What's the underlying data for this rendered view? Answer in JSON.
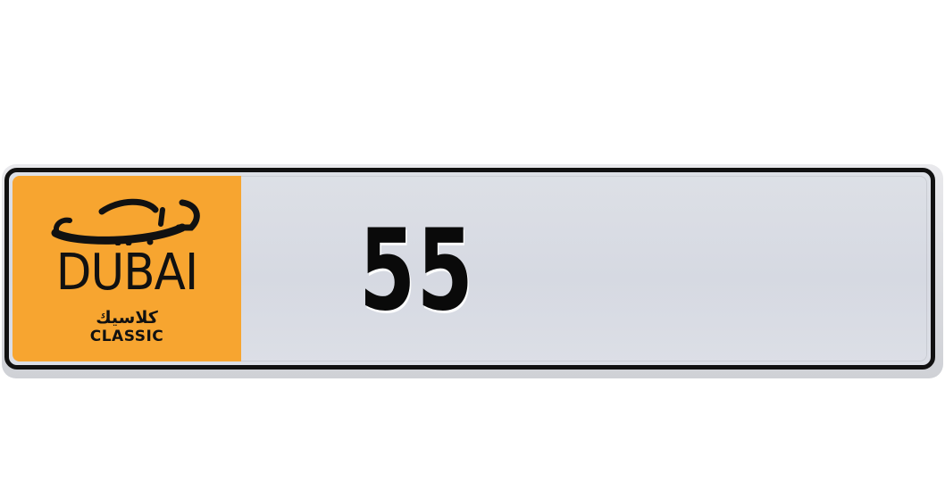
{
  "plate": {
    "emirate_arabic": "دبي",
    "emirate": "DUBAI",
    "category_arabic": "كلاسيك",
    "category": "CLASSIC",
    "number": "55"
  },
  "colors": {
    "emirate_panel": "#f7a530",
    "plate_background": "#d9dce3",
    "border": "#111111",
    "text": "#111111"
  },
  "icons": {
    "emirate_script": "dubai-arabic-calligraphy-logo"
  }
}
